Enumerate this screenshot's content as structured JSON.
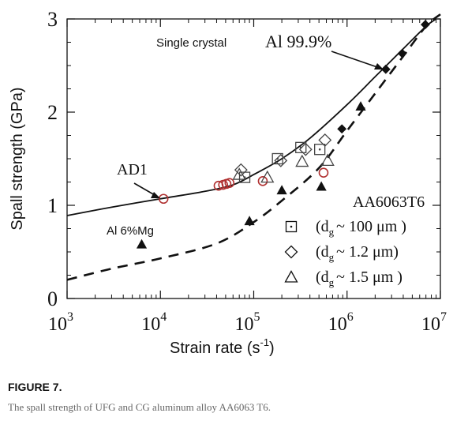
{
  "figure": {
    "label": "FIGURE 7.",
    "caption": "The spall strength of UFG and CG aluminum alloy AA6063 T6."
  },
  "chart_data": {
    "type": "scatter",
    "xlabel": "Strain rate (s",
    "xlabel_sup": "-1",
    "xlabel_tail": ")",
    "ylabel": "Spall strength (GPa)",
    "xscale": "log",
    "xlim": [
      1000,
      10000000
    ],
    "ylim": [
      0,
      3
    ],
    "x_ticks": [
      {
        "value": 1000,
        "base": "10",
        "exp": "3"
      },
      {
        "value": 10000,
        "base": "10",
        "exp": "4"
      },
      {
        "value": 100000,
        "base": "10",
        "exp": "5"
      },
      {
        "value": 1000000,
        "base": "10",
        "exp": "6"
      },
      {
        "value": 10000000,
        "base": "10",
        "exp": "7"
      }
    ],
    "y_ticks": [
      {
        "value": 0,
        "label": "0"
      },
      {
        "value": 1,
        "label": "1"
      },
      {
        "value": 2,
        "label": "2"
      },
      {
        "value": 3,
        "label": "3"
      }
    ],
    "grid": false,
    "annotations": {
      "single_crystal_a": "Single crystal",
      "single_crystal_b": "Al 99.9%",
      "ad1": "AD1",
      "al_mg": "Al 6%Mg",
      "alloy": "AA6063T6"
    },
    "legend": {
      "placement": "bottom-right",
      "entries": [
        {
          "marker": "square",
          "prefix": "(d",
          "sub": "g",
          "rest": "~ 100  μm )"
        },
        {
          "marker": "diamond",
          "prefix": "(d",
          "sub": "g",
          "rest": "~ 1.2  μm)"
        },
        {
          "marker": "triangle",
          "prefix": "(d",
          "sub": "g",
          "rest": "~ 1.5  μm )"
        }
      ]
    },
    "curves": [
      {
        "style": "solid",
        "points": [
          [
            1000,
            0.89
          ],
          [
            3000,
            0.98
          ],
          [
            10000,
            1.07
          ],
          [
            30000,
            1.15
          ],
          [
            60000,
            1.22
          ],
          [
            100000,
            1.33
          ],
          [
            200000,
            1.5
          ],
          [
            400000,
            1.72
          ],
          [
            1000000,
            2.08
          ],
          [
            2000000,
            2.38
          ],
          [
            4000000,
            2.68
          ],
          [
            7000000,
            2.92
          ],
          [
            9000000,
            3.0
          ]
        ]
      },
      {
        "style": "dashed",
        "points": [
          [
            1000,
            0.2
          ],
          [
            3000,
            0.32
          ],
          [
            10000,
            0.43
          ],
          [
            40000,
            0.59
          ],
          [
            100000,
            0.82
          ],
          [
            200000,
            1.05
          ],
          [
            500000,
            1.4
          ],
          [
            1000000,
            1.8
          ],
          [
            2000000,
            2.2
          ],
          [
            4000000,
            2.6
          ],
          [
            7000000,
            2.92
          ],
          [
            10000000,
            3.05
          ]
        ]
      }
    ],
    "series": [
      {
        "marker": "circle-open",
        "color": "#b03030",
        "points": [
          [
            10800,
            1.07
          ],
          [
            42000,
            1.21
          ],
          [
            47000,
            1.22
          ],
          [
            51000,
            1.23
          ],
          [
            55000,
            1.24
          ],
          [
            125000,
            1.26
          ],
          [
            560000,
            1.35
          ]
        ]
      },
      {
        "marker": "square-open",
        "color": "#444444",
        "points": [
          [
            80000,
            1.3
          ],
          [
            180000,
            1.5
          ],
          [
            320000,
            1.62
          ],
          [
            510000,
            1.6
          ]
        ]
      },
      {
        "marker": "diamond-open",
        "color": "#444444",
        "points": [
          [
            73000,
            1.38
          ],
          [
            195000,
            1.48
          ],
          [
            360000,
            1.6
          ],
          [
            580000,
            1.7
          ]
        ]
      },
      {
        "marker": "triangle-open",
        "color": "#444444",
        "points": [
          [
            70000,
            1.33
          ],
          [
            140000,
            1.3
          ],
          [
            330000,
            1.47
          ],
          [
            620000,
            1.48
          ]
        ]
      },
      {
        "marker": "triangle-filled",
        "color": "#111111",
        "points": [
          [
            6300,
            0.58
          ],
          [
            90000,
            0.83
          ],
          [
            200000,
            1.16
          ],
          [
            530000,
            1.2
          ],
          [
            1400000,
            2.06
          ]
        ]
      },
      {
        "marker": "diamond-filled",
        "color": "#111111",
        "points": [
          [
            880000,
            1.82
          ],
          [
            2600000,
            2.46
          ],
          [
            3900000,
            2.63
          ],
          [
            6900000,
            2.94
          ]
        ]
      }
    ]
  }
}
